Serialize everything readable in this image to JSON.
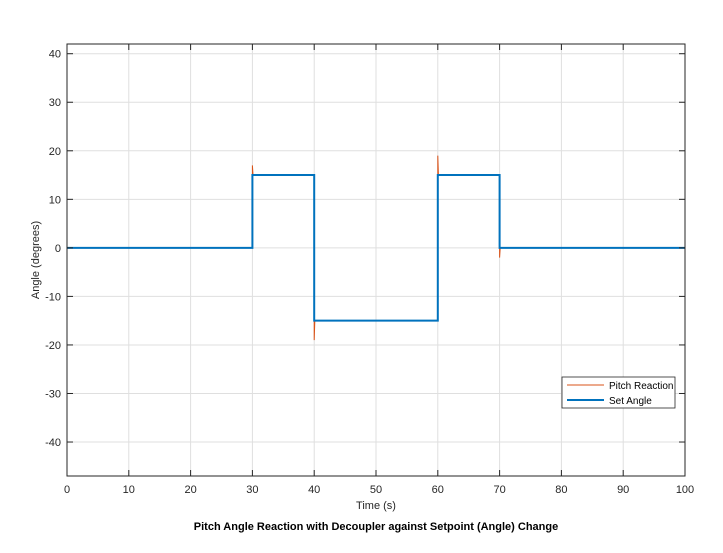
{
  "chart_data": {
    "type": "line",
    "title": "Pitch Angle Reaction with Decoupler against Setpoint (Angle) Change",
    "xlabel": "Time (s)",
    "ylabel": "Angle (degrees)",
    "xlim": [
      0,
      100
    ],
    "ylim": [
      -47,
      42
    ],
    "xticks": [
      0,
      10,
      20,
      30,
      40,
      50,
      60,
      70,
      80,
      90,
      100
    ],
    "yticks": [
      -40,
      -30,
      -20,
      -10,
      0,
      10,
      20,
      30,
      40
    ],
    "xtick_labels": [
      "0",
      "10",
      "20",
      "30",
      "40",
      "50",
      "60",
      "70",
      "80",
      "90",
      "100"
    ],
    "ytick_labels": [
      "-40",
      "-30",
      "-20",
      "-10",
      "0",
      "10",
      "20",
      "30",
      "40"
    ],
    "grid": true,
    "legend_position": "lower-right",
    "series": [
      {
        "name": "Pitch Reaction",
        "color": "#d95319",
        "x": [
          0,
          30,
          30,
          30.1,
          40,
          40,
          40.1,
          60,
          60,
          60.1,
          70,
          70,
          70.1,
          100
        ],
        "y": [
          0,
          0,
          17,
          15,
          15,
          -19,
          -15,
          -15,
          19,
          15,
          15,
          -2,
          0,
          0
        ]
      },
      {
        "name": "Set Angle",
        "color": "#0072bd",
        "x": [
          0,
          30,
          30,
          40,
          40,
          60,
          60,
          70,
          70,
          100
        ],
        "y": [
          0,
          0,
          15,
          15,
          -15,
          -15,
          15,
          15,
          0,
          0
        ]
      }
    ]
  }
}
